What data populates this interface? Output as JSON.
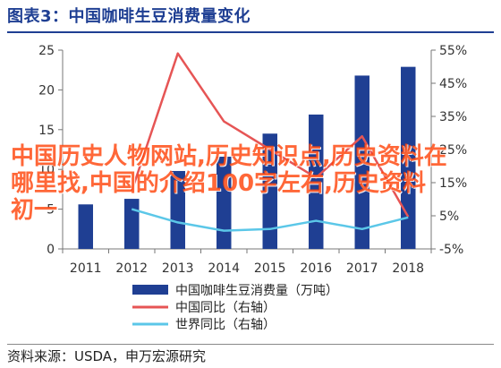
{
  "title": "图表3：中国咖啡生豆消费量变化",
  "source": "资料来源：USDA，申万宏源研究",
  "watermark": "中国历史人物网站,历史知识点,历史资料在哪里找,中国的介绍100字左右,历史资料初一",
  "colors": {
    "title": "#1f3f93",
    "bar": "#1f3f93",
    "china_yoy": "#e65555",
    "world_yoy": "#5bc7e8"
  },
  "chart_data": {
    "type": "bar",
    "categories": [
      "2011",
      "2012",
      "2013",
      "2014",
      "2015",
      "2016",
      "2017",
      "2018"
    ],
    "y_left": {
      "ylim": [
        0,
        25
      ],
      "ticks": [
        "0",
        "5",
        "10",
        "15",
        "20",
        "25"
      ],
      "tick_values": [
        0,
        5,
        10,
        15,
        20,
        25
      ]
    },
    "y_right": {
      "ylim": [
        -5,
        55
      ],
      "ticks": [
        "-5%",
        "5%",
        "15%",
        "25%",
        "35%",
        "45%",
        "55%"
      ],
      "tick_values": [
        -5,
        5,
        15,
        25,
        35,
        45,
        55
      ]
    },
    "series": [
      {
        "name": "中国咖啡生豆消费量（万吨）",
        "type": "bar",
        "axis": "left",
        "values": [
          5.6,
          6.3,
          9.8,
          11.6,
          14.5,
          16.9,
          21.8,
          22.9
        ]
      },
      {
        "name": "中国同比（右轴）",
        "type": "line",
        "axis": "right",
        "values": [
          null,
          12.5,
          54,
          33.5,
          25,
          16.5,
          29,
          4.7
        ]
      },
      {
        "name": "世界同比（右轴）",
        "type": "line",
        "axis": "right",
        "values": [
          null,
          7,
          3,
          0.5,
          1,
          3.5,
          1,
          4.5
        ]
      }
    ],
    "legend_position": "bottom",
    "grid": false
  }
}
